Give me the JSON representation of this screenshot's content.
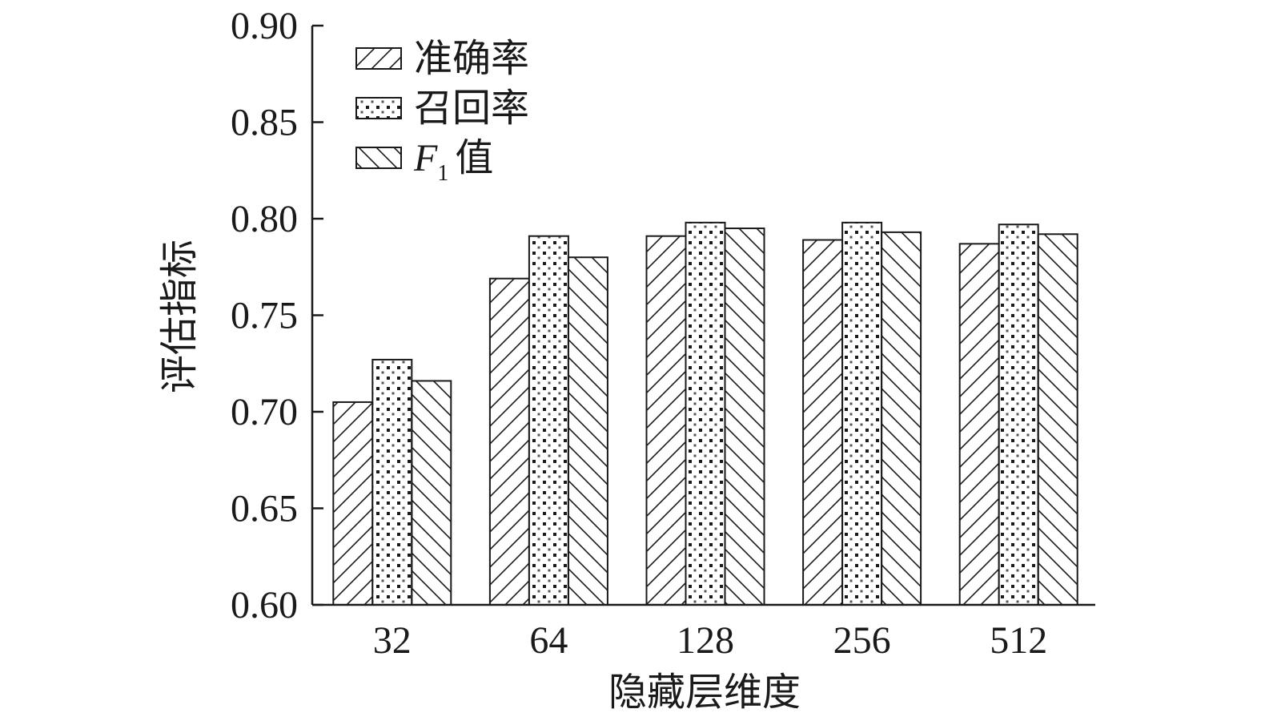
{
  "chart_data": {
    "type": "bar",
    "xlabel": "隐藏层维度",
    "ylabel": "评估指标",
    "categories": [
      "32",
      "64",
      "128",
      "256",
      "512"
    ],
    "series": [
      {
        "name": "准确率",
        "pattern": "diagonal-forward",
        "values": [
          0.705,
          0.769,
          0.791,
          0.789,
          0.787
        ]
      },
      {
        "name": "召回率",
        "pattern": "dots",
        "values": [
          0.727,
          0.791,
          0.798,
          0.798,
          0.797
        ]
      },
      {
        "name": "F1 值",
        "legend_italic": "F",
        "legend_sub": "1",
        "legend_rest": "值",
        "pattern": "diagonal-back",
        "values": [
          0.716,
          0.78,
          0.795,
          0.793,
          0.792
        ]
      }
    ],
    "ylim": [
      0.6,
      0.9
    ],
    "yticks": [
      "0.60",
      "0.65",
      "0.70",
      "0.75",
      "0.80",
      "0.85",
      "0.90"
    ],
    "grid": false,
    "legend_position": "top-left"
  }
}
